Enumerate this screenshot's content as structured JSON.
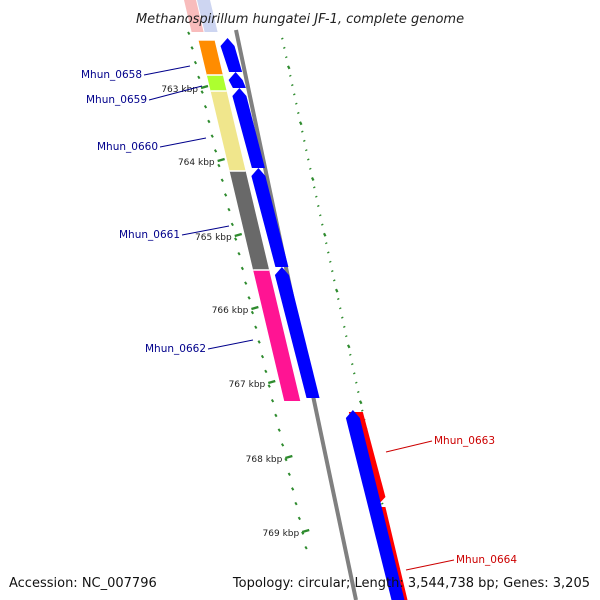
{
  "title": "Methanospirillum hungatei JF-1, complete genome",
  "accession": "Accession: NC_007796",
  "summary": "Topology: circular; Length: 3,544,738 bp; Genes: 3,205",
  "colors": {
    "cds": "#0000ff",
    "highlight": "#ff0000",
    "label_left": "#00008b",
    "label_right": "#cc0000",
    "tick": "#2e8b2e",
    "backbone": "#808080"
  },
  "scale_labels": [
    "763 kbp",
    "764 kbp",
    "765 kbp",
    "766 kbp",
    "767 kbp",
    "768 kbp",
    "769 kbp"
  ],
  "genes": [
    {
      "id": "Mhun_0658",
      "color": "#ff8c00"
    },
    {
      "id": "Mhun_0659",
      "color": "#adff2f"
    },
    {
      "id": "Mhun_0660",
      "color": "#f0e68c"
    },
    {
      "id": "Mhun_0661",
      "color": "#696969"
    },
    {
      "id": "Mhun_0662",
      "color": "#ff1493"
    },
    {
      "id": "Mhun_0663",
      "color": "#ff0000"
    },
    {
      "id": "Mhun_0664",
      "color": "#ff0000"
    }
  ]
}
